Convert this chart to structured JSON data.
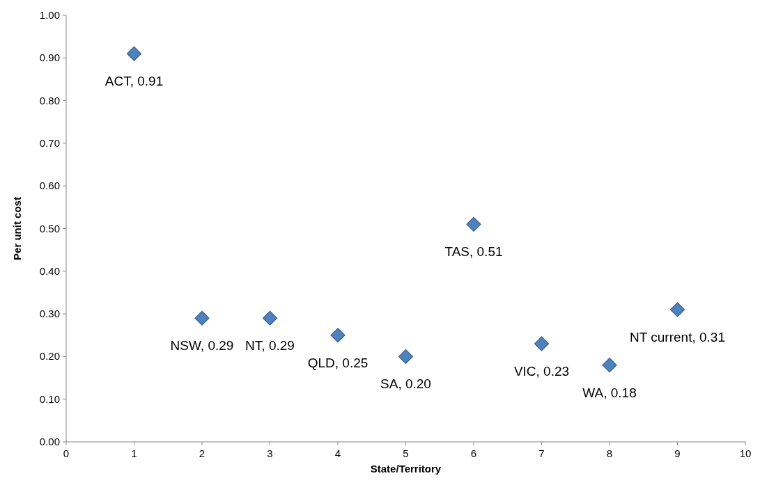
{
  "chart_data": {
    "type": "scatter",
    "xlabel": "State/Territory",
    "ylabel": "Per unit cost",
    "x": [
      1,
      2,
      3,
      4,
      5,
      6,
      7,
      8,
      9
    ],
    "series": [
      {
        "color": "#4f81bd",
        "values": [
          0.91,
          0.29,
          0.29,
          0.25,
          0.2,
          0.51,
          0.23,
          0.18,
          0.31
        ],
        "value_labels": [
          "ACT, 0.91",
          "NSW, 0.29",
          "NT, 0.29",
          "QLD, 0.25",
          "SA, 0.20",
          "TAS, 0.51",
          "VIC, 0.23",
          "WA, 0.18",
          "NT current, 0.31"
        ]
      }
    ],
    "xlim": [
      0,
      10
    ],
    "xticks": [
      0,
      1,
      2,
      3,
      4,
      5,
      6,
      7,
      8,
      9,
      10
    ],
    "ylim": [
      0,
      1
    ],
    "yticks": [
      {
        "value": 0,
        "label": "0.00"
      },
      {
        "value": 0.1,
        "label": "0.10"
      },
      {
        "value": 0.2,
        "label": "0.20"
      },
      {
        "value": 0.3,
        "label": "0.30"
      },
      {
        "value": 0.4,
        "label": "0.40"
      },
      {
        "value": 0.5,
        "label": "0.50"
      },
      {
        "value": 0.6,
        "label": "0.60"
      },
      {
        "value": 0.7,
        "label": "0.70"
      },
      {
        "value": 0.8,
        "label": "0.80"
      },
      {
        "value": 0.9,
        "label": "0.90"
      },
      {
        "value": 1,
        "label": "1.00"
      }
    ],
    "marker": "diamond",
    "grid": false
  }
}
